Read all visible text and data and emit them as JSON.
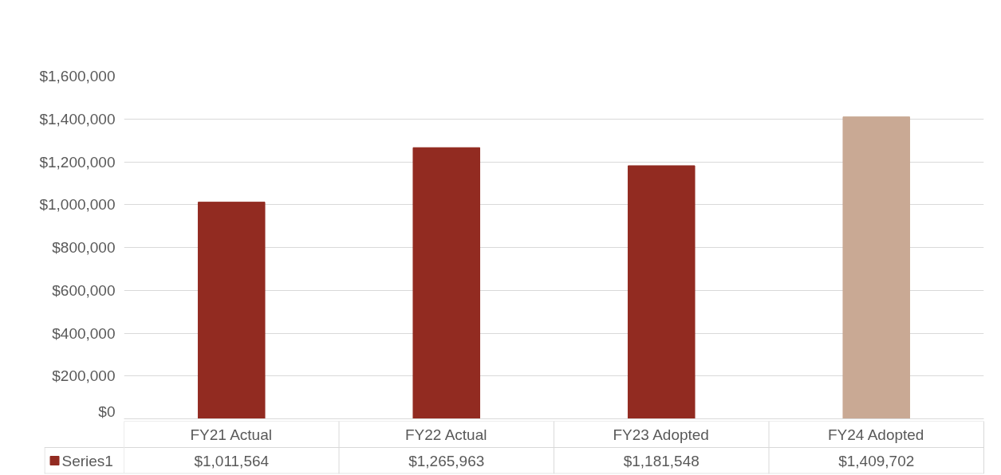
{
  "chart_data": {
    "type": "bar",
    "categories": [
      "FY21 Actual",
      "FY22 Actual",
      "FY23 Adopted",
      "FY24 Adopted"
    ],
    "series": [
      {
        "name": "Series1",
        "color": "#922b21",
        "colors": [
          "#922b21",
          "#922b21",
          "#922b21",
          "#c9a994"
        ],
        "values": [
          1011564,
          1265963,
          1181548,
          1409702
        ],
        "value_labels": [
          "$1,011,564",
          "$1,265,963",
          "$1,181,548",
          "$1,409,702"
        ]
      }
    ],
    "ylim": [
      0,
      1600000
    ],
    "yticks": [
      {
        "value": 0,
        "label": "$0"
      },
      {
        "value": 200000,
        "label": "$200,000"
      },
      {
        "value": 400000,
        "label": "$400,000"
      },
      {
        "value": 600000,
        "label": "$600,000"
      },
      {
        "value": 800000,
        "label": "$800,000"
      },
      {
        "value": 1000000,
        "label": "$1,000,000"
      },
      {
        "value": 1200000,
        "label": "$1,200,000"
      },
      {
        "value": 1400000,
        "label": "$1,400,000"
      },
      {
        "value": 1600000,
        "label": "$1,600,000"
      }
    ],
    "grid": "y",
    "legend": "bottom"
  }
}
